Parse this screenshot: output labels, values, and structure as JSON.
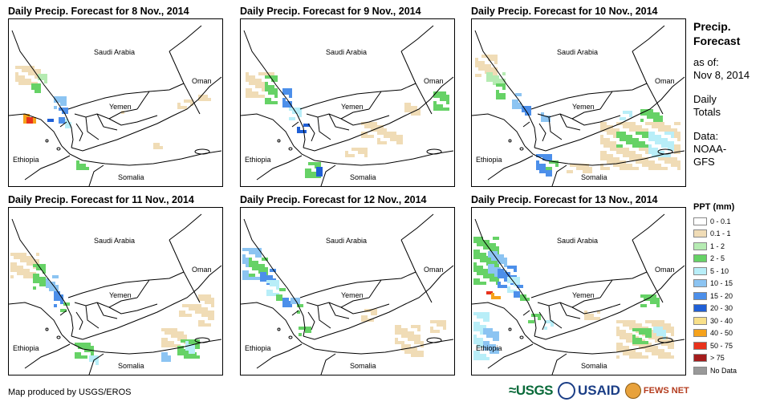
{
  "panels": [
    {
      "title": "Daily Precip. Forecast for 8 Nov., 2014",
      "scenario": "day1"
    },
    {
      "title": "Daily Precip. Forecast for 9 Nov., 2014",
      "scenario": "day2"
    },
    {
      "title": "Daily Precip. Forecast for 10 Nov., 2014",
      "scenario": "day3"
    },
    {
      "title": "Daily Precip. Forecast for 11 Nov., 2014",
      "scenario": "day4"
    },
    {
      "title": "Daily Precip. Forecast for 12 Nov., 2014",
      "scenario": "day5"
    },
    {
      "title": "Daily Precip. Forecast for 13 Nov., 2014",
      "scenario": "day6"
    }
  ],
  "map_labels": {
    "saudi": "Saudi Arabia",
    "oman": "Oman",
    "yemen": "Yemen",
    "ethiopia": "Ethiopia",
    "somalia": "Somalia"
  },
  "sidebar": {
    "title_line1": "Precip.",
    "title_line2": "Forecast",
    "asof_line1": "as of:",
    "asof_line2": "Nov 8, 2014",
    "totals_line1": "Daily",
    "totals_line2": "Totals",
    "data_line1": "Data:",
    "data_line2": "NOAA-",
    "data_line3": "GFS"
  },
  "legend": {
    "title": "PPT (mm)",
    "items": [
      {
        "label": "0 - 0.1",
        "color": "#ffffff"
      },
      {
        "label": "0.1 - 1",
        "color": "#f0dcb6"
      },
      {
        "label": "1 - 2",
        "color": "#b5ebb2"
      },
      {
        "label": "2 - 5",
        "color": "#66d266"
      },
      {
        "label": "5 - 10",
        "color": "#b8eef8"
      },
      {
        "label": "10 - 15",
        "color": "#8cc4f2"
      },
      {
        "label": "15 - 20",
        "color": "#4c8fea"
      },
      {
        "label": "20 - 30",
        "color": "#1f5fd6"
      },
      {
        "label": "30 - 40",
        "color": "#f8e08a"
      },
      {
        "label": "40 - 50",
        "color": "#f5a21c"
      },
      {
        "label": "50 - 75",
        "color": "#e8321c"
      },
      {
        "label": "> 75",
        "color": "#a41c1c"
      },
      {
        "label": "No Data",
        "color": "#999999"
      }
    ]
  },
  "credit": "Map produced by USGS/EROS",
  "logos": {
    "usgs": "≈USGS",
    "usaid": "USAID",
    "fews": "FEWS NET"
  }
}
